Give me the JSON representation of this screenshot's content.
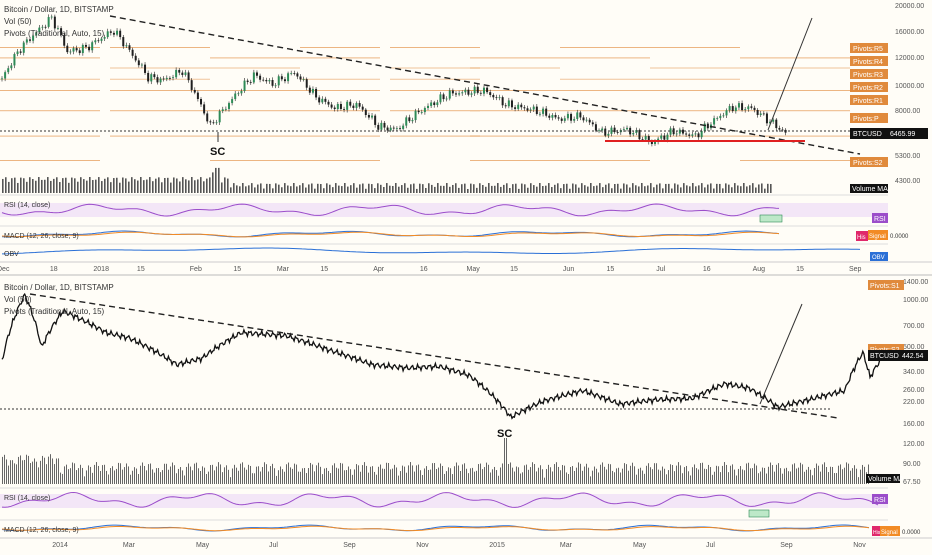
{
  "colors": {
    "background": "#fffdf7",
    "candle": "#1f1f1f",
    "candle_up": "#2e8b57",
    "pivot": "#e08a3c",
    "pivot_label": "#e08a3c",
    "rsi": "#9b4dca",
    "rsi_band": "#f3e6f7",
    "macd": "#2a6fd6",
    "signal": "#f28b25",
    "obv": "#2a6fd6",
    "price_tag": "#111111",
    "red_line": "#e02020"
  },
  "top": {
    "title": "Bitcoin / Dollar, 1D, BITSTAMP",
    "vol_legend": "Vol (50)",
    "pivots_legend": "Pivots (Traditional, Auto, 15)",
    "sc_label": "SC",
    "price_tag": {
      "symbol": "BTCUSD",
      "value": "6465.99"
    },
    "volume_ma_tag": "Volume MA",
    "rsi_legend": "RSI (14, close)",
    "rsi_tag": "RSI",
    "macd_legend": "MACD (12, 26, close, 9)",
    "macd_tags": [
      "His",
      "Signal",
      "0.0000"
    ],
    "obv_legend": "OBV",
    "obv_tag": "OBV",
    "pivot_tags": [
      "Pivots:R5",
      "Pivots:R4",
      "Pivots:R3",
      "Pivots:R2",
      "Pivots:R1",
      "Pivots:P",
      "Pivots:S2"
    ],
    "axis_ticks": [
      "20000.00",
      "16000.00",
      "12000.00",
      "10000.00",
      "8000.00",
      "5300.00",
      "4300.00"
    ],
    "date_ticks": [
      "Dec",
      "18",
      "2018",
      "15",
      "Feb",
      "15",
      "Mar",
      "15",
      "Apr",
      "16",
      "May",
      "15",
      "Jun",
      "15",
      "Jul",
      "16",
      "Aug",
      "15",
      "Sep"
    ]
  },
  "bottom": {
    "title": "Bitcoin / Dollar, 1D, BITSTAMP",
    "vol_legend": "Vol (50)",
    "pivots_legend": "Pivots (Traditional, Auto, 15)",
    "sc_label": "SC",
    "price_tag": {
      "symbol": "BTCUSD",
      "value": "442.54"
    },
    "volume_ma_tag": "Volume MA",
    "rsi_legend": "RSI (14, close)",
    "rsi_tag": "RSI",
    "macd_legend": "MACD (12, 26, close, 9)",
    "macd_tags": [
      "His",
      "Signal",
      "0.0000"
    ],
    "pivot_tags": [
      "Pivots:S1",
      "Pivots:S2"
    ],
    "axis_ticks": [
      "1400.00",
      "1000.00",
      "700.00",
      "500.00",
      "340.00",
      "260.00",
      "220.00",
      "160.00",
      "120.00",
      "90.00",
      "67.50"
    ],
    "date_ticks": [
      "2014",
      "Mar",
      "May",
      "Jul",
      "Sep",
      "Nov",
      "2015",
      "Mar",
      "May",
      "Jul",
      "Sep",
      "Nov"
    ]
  },
  "chart_data": [
    {
      "type": "candlestick",
      "title": "Bitcoin / Dollar, 1D, BITSTAMP",
      "x_range": [
        "2017-12-01",
        "2018-09-10"
      ],
      "y_scale": "log",
      "ylim": [
        4000,
        22000
      ],
      "series": [
        {
          "name": "BTCUSD",
          "points": [
            [
              "2017-12-01",
              10800
            ],
            [
              "2017-12-07",
              14500
            ],
            [
              "2017-12-12",
              16800
            ],
            [
              "2017-12-17",
              19300
            ],
            [
              "2017-12-22",
              14000
            ],
            [
              "2017-12-28",
              14500
            ],
            [
              "2018-01-06",
              17100
            ],
            [
              "2018-01-12",
              13500
            ],
            [
              "2018-01-17",
              11000
            ],
            [
              "2018-01-22",
              10700
            ],
            [
              "2018-01-28",
              11700
            ],
            [
              "2018-02-02",
              8900
            ],
            [
              "2018-02-06",
              6900
            ],
            [
              "2018-02-12",
              8600
            ],
            [
              "2018-02-20",
              11200
            ],
            [
              "2018-02-26",
              10300
            ],
            [
              "2018-03-05",
              11500
            ],
            [
              "2018-03-12",
              9100
            ],
            [
              "2018-03-18",
              8200
            ],
            [
              "2018-03-25",
              8500
            ],
            [
              "2018-04-01",
              6900
            ],
            [
              "2018-04-07",
              6700
            ],
            [
              "2018-04-14",
              7900
            ],
            [
              "2018-04-24",
              9400
            ],
            [
              "2018-05-05",
              9700
            ],
            [
              "2018-05-12",
              8500
            ],
            [
              "2018-05-22",
              8000
            ],
            [
              "2018-05-29",
              7400
            ],
            [
              "2018-06-05",
              7600
            ],
            [
              "2018-06-12",
              6500
            ],
            [
              "2018-06-20",
              6700
            ],
            [
              "2018-06-28",
              5900
            ],
            [
              "2018-07-05",
              6600
            ],
            [
              "2018-07-12",
              6300
            ],
            [
              "2018-07-18",
              7300
            ],
            [
              "2018-07-24",
              8300
            ],
            [
              "2018-07-30",
              8200
            ],
            [
              "2018-08-04",
              7400
            ],
            [
              "2018-08-10",
              6465
            ]
          ]
        }
      ],
      "pivot_levels": {
        "R5": 14600,
        "R4": 13200,
        "R3": 12000,
        "R2": 10800,
        "R1": 9700,
        "P": 8000,
        "S1": 6300,
        "S2": 5000
      },
      "annotations": [
        "SC"
      ]
    },
    {
      "type": "candlestick",
      "title": "Bitcoin / Dollar, 1D, BITSTAMP",
      "x_range": [
        "2013-11-15",
        "2015-11-20"
      ],
      "y_scale": "log",
      "ylim": [
        67.5,
        1400
      ],
      "series": [
        {
          "name": "BTCUSD",
          "points": [
            [
              "2013-11-15",
              420
            ],
            [
              "2013-11-25",
              800
            ],
            [
              "2013-12-04",
              1150
            ],
            [
              "2013-12-18",
              520
            ],
            [
              "2014-01-05",
              900
            ],
            [
              "2014-02-10",
              650
            ],
            [
              "2014-03-01",
              600
            ],
            [
              "2014-04-10",
              400
            ],
            [
              "2014-05-01",
              440
            ],
            [
              "2014-06-03",
              650
            ],
            [
              "2014-07-10",
              620
            ],
            [
              "2014-08-15",
              500
            ],
            [
              "2014-09-20",
              400
            ],
            [
              "2014-10-20",
              380
            ],
            [
              "2014-11-15",
              390
            ],
            [
              "2014-12-10",
              340
            ],
            [
              "2015-01-14",
              180
            ],
            [
              "2015-02-10",
              230
            ],
            [
              "2015-03-15",
              270
            ],
            [
              "2015-04-15",
              220
            ],
            [
              "2015-05-15",
              235
            ],
            [
              "2015-06-15",
              240
            ],
            [
              "2015-07-12",
              300
            ],
            [
              "2015-08-01",
              280
            ],
            [
              "2015-08-25",
              210
            ],
            [
              "2015-09-20",
              235
            ],
            [
              "2015-10-20",
              270
            ],
            [
              "2015-11-04",
              480
            ],
            [
              "2015-11-10",
              330
            ],
            [
              "2015-11-20",
              442.54
            ]
          ]
        }
      ],
      "annotations": [
        "SC"
      ]
    }
  ]
}
